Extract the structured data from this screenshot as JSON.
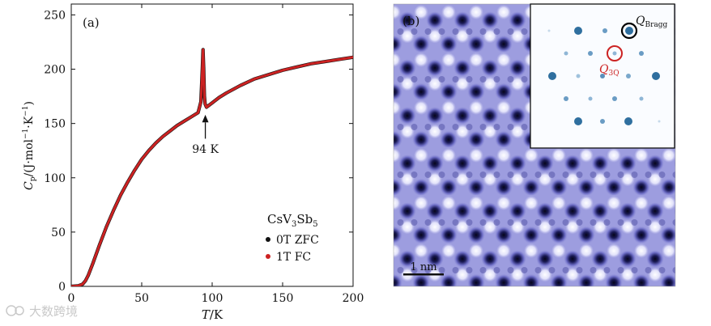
{
  "figure": {
    "panel_a_label": "(a)",
    "panel_b_label": "(b)",
    "watermark": "大数跨境"
  },
  "chart_data": {
    "type": "line",
    "title": "",
    "xlabel": "T/K",
    "ylabel": "Cp/(J·mol−1·K−1)",
    "xlim": [
      0,
      200
    ],
    "ylim": [
      0,
      260
    ],
    "xticks": [
      "0",
      "50",
      "100",
      "150",
      "200"
    ],
    "yticks": [
      "0",
      "50",
      "100",
      "150",
      "200",
      "250"
    ],
    "annotation": {
      "text": "94 K",
      "x": 94
    },
    "legend": {
      "title": "CsV3Sb5",
      "placement": "bottom-right",
      "entries": [
        {
          "label": "0T ZFC",
          "color": "#111111"
        },
        {
          "label": "1T FC",
          "color": "#cc2222"
        }
      ]
    },
    "series": [
      {
        "name": "0T ZFC",
        "x": [
          0,
          5,
          8,
          10,
          12,
          15,
          20,
          25,
          30,
          35,
          40,
          45,
          50,
          55,
          60,
          65,
          70,
          75,
          80,
          85,
          90,
          92,
          93,
          93.5,
          94,
          94.5,
          95,
          96,
          98,
          100,
          105,
          110,
          120,
          130,
          140,
          150,
          160,
          170,
          180,
          190,
          200
        ],
        "y": [
          0,
          0.5,
          2,
          5,
          10,
          20,
          38,
          55,
          70,
          84,
          96,
          107,
          117,
          125,
          132,
          138,
          143,
          148,
          152,
          156,
          160,
          170,
          200,
          218,
          200,
          175,
          168,
          165,
          167,
          169,
          174,
          178,
          185,
          191,
          195,
          199,
          202,
          205,
          207,
          209,
          211
        ]
      },
      {
        "name": "1T FC",
        "x": [
          0,
          5,
          8,
          10,
          12,
          15,
          20,
          25,
          30,
          35,
          40,
          45,
          50,
          55,
          60,
          65,
          70,
          75,
          80,
          85,
          90,
          92,
          93,
          93.5,
          94,
          94.5,
          95,
          96,
          98,
          100,
          105,
          110,
          120,
          130,
          140,
          150,
          160,
          170,
          180,
          190,
          200
        ],
        "y": [
          0,
          0.5,
          2,
          5,
          10,
          20,
          38,
          55,
          70,
          84,
          96,
          107,
          117,
          125,
          132,
          138,
          143,
          148,
          152,
          156,
          160,
          170,
          200,
          218,
          200,
          175,
          168,
          165,
          167,
          169,
          174,
          178,
          185,
          191,
          195,
          199,
          202,
          205,
          207,
          209,
          211
        ]
      }
    ]
  },
  "stm_image": {
    "scale_bar_label": "1 nm",
    "inset_label_bragg": "Q",
    "inset_label_bragg_sub": "Bragg",
    "inset_label_3q": "Q",
    "inset_label_3q_sub": "3Q",
    "bragg_color": "#000000",
    "q3q_color": "#cc2222"
  }
}
